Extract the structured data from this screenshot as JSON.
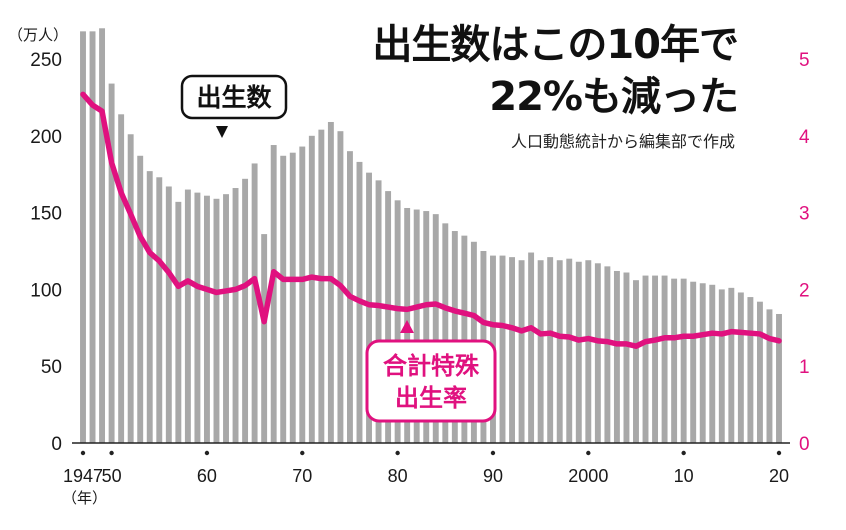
{
  "chart_data": {
    "type": "bar+line",
    "title_line1": "出生数はこの10年で",
    "title_line2": "22%も減った",
    "source": "人口動態統計から編集部で作成",
    "left_unit": "（万人）",
    "x_unit": "（年）",
    "bar_label": "出生数",
    "line_label_1": "合計特殊",
    "line_label_2": "出生率",
    "left_ticks": [
      "0",
      "50",
      "100",
      "150",
      "200",
      "250"
    ],
    "right_ticks": [
      "0",
      "1",
      "2",
      "3",
      "4",
      "5"
    ],
    "x_ticks": [
      {
        "year": 1947,
        "label": "1947"
      },
      {
        "year": 1950,
        "label": "50"
      },
      {
        "year": 1960,
        "label": "60"
      },
      {
        "year": 1970,
        "label": "70"
      },
      {
        "year": 1980,
        "label": "80"
      },
      {
        "year": 1990,
        "label": "90"
      },
      {
        "year": 2000,
        "label": "2000"
      },
      {
        "year": 2010,
        "label": "10"
      },
      {
        "year": 2020,
        "label": "20"
      }
    ],
    "ylim_left": [
      0,
      250
    ],
    "ylim_right": [
      0,
      5
    ],
    "x": [
      1947,
      1948,
      1949,
      1950,
      1951,
      1952,
      1953,
      1954,
      1955,
      1956,
      1957,
      1958,
      1959,
      1960,
      1961,
      1962,
      1963,
      1964,
      1965,
      1966,
      1967,
      1968,
      1969,
      1970,
      1971,
      1972,
      1973,
      1974,
      1975,
      1976,
      1977,
      1978,
      1979,
      1980,
      1981,
      1982,
      1983,
      1984,
      1985,
      1986,
      1987,
      1988,
      1989,
      1990,
      1991,
      1992,
      1993,
      1994,
      1995,
      1996,
      1997,
      1998,
      1999,
      2000,
      2001,
      2002,
      2003,
      2004,
      2005,
      2006,
      2007,
      2008,
      2009,
      2010,
      2011,
      2012,
      2013,
      2014,
      2015,
      2016,
      2017,
      2018,
      2019,
      2020
    ],
    "series": [
      {
        "name": "出生数",
        "kind": "bar",
        "color": "#a8a8a8",
        "values": [
          268,
          268,
          270,
          234,
          214,
          201,
          187,
          177,
          173,
          167,
          157,
          165,
          163,
          161,
          159,
          162,
          166,
          172,
          182,
          136,
          194,
          187,
          189,
          193,
          200,
          204,
          209,
          203,
          190,
          183,
          176,
          171,
          164,
          158,
          153,
          152,
          151,
          149,
          143,
          138,
          135,
          131,
          125,
          122,
          122,
          121,
          119,
          124,
          119,
          121,
          119,
          120,
          118,
          119,
          117,
          115,
          112,
          111,
          106,
          109,
          109,
          109,
          107,
          107,
          105,
          104,
          103,
          100,
          101,
          98,
          95,
          92,
          87,
          84
        ]
      },
      {
        "name": "合計特殊出生率",
        "kind": "line",
        "color": "#e0117f",
        "values": [
          4.54,
          4.4,
          4.32,
          3.65,
          3.26,
          2.98,
          2.69,
          2.48,
          2.37,
          2.22,
          2.04,
          2.11,
          2.04,
          2.0,
          1.96,
          1.98,
          2.0,
          2.05,
          2.14,
          1.58,
          2.23,
          2.13,
          2.13,
          2.13,
          2.16,
          2.14,
          2.14,
          2.05,
          1.91,
          1.85,
          1.8,
          1.79,
          1.77,
          1.75,
          1.74,
          1.77,
          1.8,
          1.81,
          1.76,
          1.72,
          1.69,
          1.66,
          1.57,
          1.54,
          1.53,
          1.5,
          1.46,
          1.5,
          1.42,
          1.43,
          1.39,
          1.38,
          1.34,
          1.36,
          1.33,
          1.32,
          1.29,
          1.29,
          1.26,
          1.32,
          1.34,
          1.37,
          1.37,
          1.39,
          1.39,
          1.41,
          1.43,
          1.42,
          1.45,
          1.44,
          1.43,
          1.42,
          1.36,
          1.33
        ]
      }
    ]
  }
}
